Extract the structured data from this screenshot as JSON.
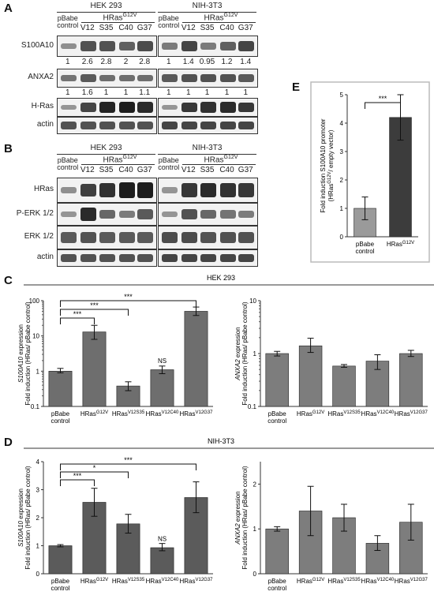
{
  "panels": {
    "A": "A",
    "B": "B",
    "C": "C",
    "D": "D",
    "E": "E"
  },
  "blot": {
    "cell_lines": [
      "HEK 293",
      "NIH-3T3"
    ],
    "hras_header": "HRas",
    "hras_sup": "G12V",
    "lanes": [
      "pBabe\ncontrol",
      "V12",
      "S35",
      "C40",
      "G37"
    ],
    "A_rows": [
      "S100A10",
      "ANXA2",
      "H-Ras",
      "actin"
    ],
    "B_rows": [
      "HRas",
      "P-ERK 1/2",
      "ERK 1/2",
      "actin"
    ],
    "quant_S100A10": {
      "HEK 293": [
        "1",
        "2.6",
        "2.8",
        "2",
        "2.8"
      ],
      "NIH-3T3": [
        "1",
        "1.4",
        "0.95",
        "1.2",
        "1.4"
      ]
    },
    "quant_ANXA2": {
      "HEK 293": [
        "1",
        "1.6",
        "1",
        "1",
        "1.1"
      ],
      "NIH-3T3": [
        "1",
        "1",
        "1",
        "1",
        "1"
      ]
    }
  },
  "chart_data": [
    {
      "id": "C-left",
      "type": "bar",
      "scale": "log",
      "title": "HEK 293",
      "ylabel_gene": "S100A10",
      "ylabel_rest": " expression",
      "ylabel2": "Fold induction (HRas/ pBabe control)",
      "ylim": [
        0.1,
        100
      ],
      "ticks": [
        "0.1",
        "1",
        "10",
        "100"
      ],
      "categories": [
        "pBabe\ncontrol",
        "HRas^G12V",
        "HRas^V12S35",
        "HRas^V12C40",
        "HRas^V12G37"
      ],
      "values": [
        1.0,
        13,
        0.38,
        1.1,
        50
      ],
      "err_high": [
        1.2,
        20,
        0.5,
        1.4,
        66
      ],
      "err_low": [
        0.9,
        8,
        0.28,
        0.85,
        38
      ],
      "annotations": [
        "***",
        "***",
        "***",
        "NS"
      ]
    },
    {
      "id": "C-right",
      "type": "bar",
      "scale": "log",
      "ylabel_gene": "ANXA2",
      "ylabel_rest": " expression",
      "ylabel2": "Fold induction (HRas/ pBabe control)",
      "ylim": [
        0.1,
        10
      ],
      "ticks": [
        "0.1",
        "1",
        "10"
      ],
      "categories": [
        "pBabe\ncontrol",
        "HRas^G12V",
        "HRas^V12S35",
        "HRas^V12C40",
        "HRas^V12G37"
      ],
      "values": [
        1.0,
        1.4,
        0.58,
        0.72,
        1.0
      ],
      "err_high": [
        1.1,
        1.95,
        0.62,
        0.95,
        1.15
      ],
      "err_low": [
        0.9,
        1.05,
        0.55,
        0.5,
        0.88
      ]
    },
    {
      "id": "D-left",
      "type": "bar",
      "scale": "linear",
      "title": "NIH-3T3",
      "ylabel_gene": "S100A10",
      "ylabel_rest": " expression",
      "ylabel2": "Fold induction (HRas/ pBabe control)",
      "ylim": [
        0,
        4
      ],
      "ticks": [
        "0",
        "1",
        "2",
        "3",
        "4"
      ],
      "categories": [
        "pBabe\ncontrol",
        "HRas^G12V",
        "HRas^V12S35",
        "HRas^V12C40",
        "HRas^V12G37"
      ],
      "values": [
        1.0,
        2.55,
        1.78,
        0.93,
        2.72
      ],
      "err_high": [
        1.04,
        3.05,
        2.12,
        1.08,
        3.28
      ],
      "err_low": [
        0.96,
        2.05,
        1.45,
        0.82,
        2.18
      ],
      "annotations": [
        "***",
        "*",
        "***",
        "NS"
      ]
    },
    {
      "id": "D-right",
      "type": "bar",
      "scale": "linear",
      "ylabel_gene": "ANXA2",
      "ylabel_rest": " expression",
      "ylabel2": "Fold induction (HRas/ pBabe control)",
      "ylim": [
        0,
        2.5
      ],
      "ticks": [
        "0",
        "1",
        "2"
      ],
      "categories": [
        "pBabe\ncontrol",
        "HRas^G12V",
        "HRas^V12S35",
        "HRas^V12C40",
        "HRas^V12G37"
      ],
      "values": [
        1.0,
        1.4,
        1.25,
        0.68,
        1.15
      ],
      "err_high": [
        1.05,
        1.95,
        1.55,
        0.85,
        1.55
      ],
      "err_low": [
        0.95,
        0.85,
        0.95,
        0.52,
        0.75
      ]
    },
    {
      "id": "E",
      "type": "bar",
      "scale": "linear",
      "ylabel": "Fold induction S100A10 promoter",
      "ylabel2": "(HRas^G12V/ empty vector)",
      "ylim": [
        0,
        5
      ],
      "ticks": [
        "0",
        "1",
        "2",
        "3",
        "4",
        "5"
      ],
      "categories": [
        "pBabe\ncontrol",
        "HRas^G12V"
      ],
      "values": [
        1.0,
        4.2
      ],
      "err_high": [
        1.4,
        5.0
      ],
      "err_low": [
        0.6,
        3.4
      ],
      "annotations": [
        "***"
      ],
      "colors": [
        "#9a9a9a",
        "#3c3c3c"
      ]
    }
  ],
  "colors": {
    "bar_c": "#6e6e6e",
    "bar_d": "#5b5b5b",
    "bar_right": "#7d7d7d",
    "band": "#121212"
  }
}
